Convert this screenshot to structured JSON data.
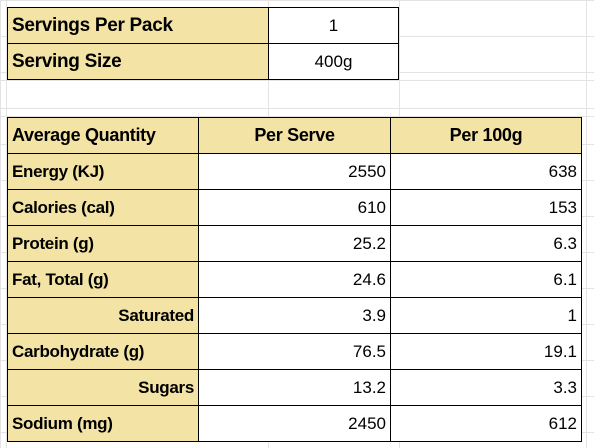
{
  "serving": {
    "per_pack_label": "Servings Per Pack",
    "per_pack_value": "1",
    "size_label": "Serving Size",
    "size_value": "400g"
  },
  "nutrition": {
    "headers": [
      "Average Quantity",
      "Per Serve",
      "Per 100g"
    ],
    "rows": [
      {
        "label": "Energy (KJ)",
        "per_serve": "2550",
        "per_100g": "638"
      },
      {
        "label": "Calories (cal)",
        "per_serve": "610",
        "per_100g": "153"
      },
      {
        "label": "Protein (g)",
        "per_serve": "25.2",
        "per_100g": "6.3"
      },
      {
        "label": "Fat, Total (g)",
        "per_serve": "24.6",
        "per_100g": "6.1"
      },
      {
        "label": "Saturated",
        "per_serve": "3.9",
        "per_100g": "1"
      },
      {
        "label": "Carbohydrate (g)",
        "per_serve": "76.5",
        "per_100g": "19.1"
      },
      {
        "label": "Sugars",
        "per_serve": "13.2",
        "per_100g": "3.3"
      },
      {
        "label": "Sodium (mg)",
        "per_serve": "2450",
        "per_100g": "612"
      }
    ]
  },
  "colors": {
    "header_fill": "#f3e3a4",
    "border": "#000000",
    "gridline": "#e3e3e3"
  }
}
